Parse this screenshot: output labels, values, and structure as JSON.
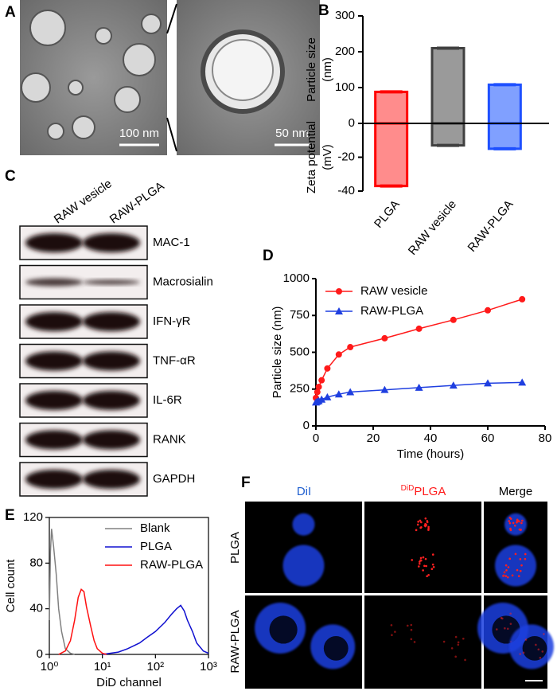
{
  "panel_a": {
    "label": "A",
    "scale_bars": [
      "100 nm",
      "50 nm"
    ]
  },
  "panel_c": {
    "label": "C",
    "columns": [
      "RAW vesicle",
      "RAW-PLGA"
    ],
    "bands": [
      "MAC-1",
      "Macrosialin",
      "IFN-γR",
      "TNF-αR",
      "IL-6R",
      "RANK",
      "GAPDH"
    ]
  },
  "panel_f": {
    "label": "F",
    "columns": [
      "DiI",
      {
        "superscript": "DiD",
        "text": "PLGA"
      },
      "Merge"
    ],
    "rows": [
      "PLGA",
      "RAW-PLGA"
    ]
  },
  "chart_data": [
    {
      "type": "bar",
      "panel": "B",
      "categories": [
        "PLGA",
        "RAW vesicle",
        "RAW-PLGA"
      ],
      "series": [
        {
          "values": [
            88,
            210,
            108
          ]
        },
        {
          "values": [
            -37,
            -13,
            -15
          ],
          "axis": "y2"
        }
      ],
      "colors": [
        "#ff0000",
        "#404040",
        "#1e50ff"
      ],
      "fill_colors": [
        "#ff8c8c",
        "#9a9a9a",
        "#80a0ff"
      ],
      "ylabel": [
        "Particle size",
        "(nm)"
      ],
      "y2label": [
        "Zeta potential",
        "(mV)"
      ],
      "ylim": [
        0,
        300
      ],
      "yticks": [
        0,
        100,
        200,
        300
      ],
      "y2lim": [
        -40,
        0
      ],
      "y2ticks": [
        -40,
        -20
      ]
    },
    {
      "type": "line",
      "panel": "D",
      "xlabel": "Time (hours)",
      "ylabel": "Particle size (nm)",
      "x": [
        0,
        0.5,
        1,
        2,
        4,
        8,
        12,
        24,
        36,
        48,
        60,
        72
      ],
      "series": [
        {
          "name": "RAW vesicle",
          "color": "#ff1a1a",
          "marker": "circle",
          "values": [
            190,
            230,
            265,
            310,
            390,
            485,
            535,
            595,
            660,
            720,
            785,
            860
          ]
        },
        {
          "name": "RAW-PLGA",
          "color": "#1f3fe0",
          "marker": "triangle",
          "values": [
            160,
            165,
            170,
            180,
            195,
            215,
            230,
            245,
            260,
            275,
            290,
            295
          ]
        }
      ],
      "xlim": [
        0,
        80
      ],
      "xticks": [
        0,
        20,
        40,
        60,
        80
      ],
      "ylim": [
        0,
        1000
      ],
      "yticks": [
        0,
        250,
        500,
        750,
        1000
      ],
      "legend": "upper left"
    },
    {
      "type": "line",
      "panel": "E",
      "xlabel": "DiD channel",
      "ylabel": "Cell count",
      "xscale": "log",
      "frame": true,
      "series": [
        {
          "name": "Blank",
          "color": "#808080",
          "x": [
            1,
            1.05,
            1.1,
            1.2,
            1.35,
            1.5,
            1.7,
            2,
            2.5,
            3
          ],
          "values": [
            30,
            90,
            110,
            95,
            70,
            40,
            20,
            5,
            1,
            0
          ]
        },
        {
          "name": "PLGA",
          "color": "#1010d0",
          "x": [
            10,
            20,
            30,
            50,
            70,
            100,
            150,
            200,
            250,
            300,
            350,
            400,
            500,
            600,
            800,
            1000
          ],
          "values": [
            0,
            2,
            5,
            10,
            15,
            20,
            28,
            35,
            40,
            43,
            38,
            30,
            20,
            10,
            3,
            1
          ]
        },
        {
          "name": "RAW-PLGA",
          "color": "#ff1010",
          "x": [
            1.5,
            2,
            2.5,
            3,
            3.5,
            4,
            4.5,
            5,
            6,
            7,
            8,
            10,
            12
          ],
          "values": [
            0,
            3,
            12,
            30,
            50,
            57,
            55,
            42,
            25,
            12,
            5,
            1,
            0
          ]
        }
      ],
      "xlim": [
        1,
        1000
      ],
      "xticks": [
        {
          "value": 1,
          "label": "10⁰"
        },
        {
          "value": 10,
          "label": "10¹"
        },
        {
          "value": 100,
          "label": "10²"
        },
        {
          "value": 1000,
          "label": "10³"
        }
      ],
      "ylim": [
        0,
        120
      ],
      "yticks": [
        0,
        40,
        80,
        120
      ],
      "legend": "upper right"
    }
  ]
}
